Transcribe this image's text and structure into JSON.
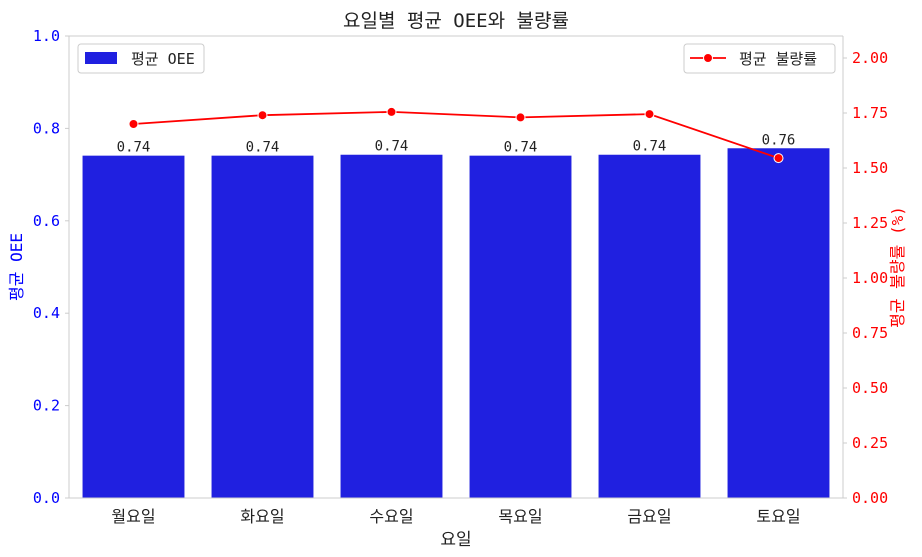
{
  "chart_data": {
    "type": "bar",
    "title": "요일별 평균 OEE와 불량률",
    "xlabel": "요일",
    "ylabel_left": "평균 OEE",
    "ylabel_right": "평균 불량률 (%)",
    "categories": [
      "월요일",
      "화요일",
      "수요일",
      "목요일",
      "금요일",
      "토요일"
    ],
    "series": [
      {
        "name": "평균 OEE",
        "type": "bar",
        "axis": "left",
        "color": "#2020e0",
        "values": [
          0.741,
          0.741,
          0.743,
          0.741,
          0.743,
          0.757
        ],
        "labels": [
          "0.74",
          "0.74",
          "0.74",
          "0.74",
          "0.74",
          "0.76"
        ]
      },
      {
        "name": "평균 불량률",
        "type": "line",
        "axis": "right",
        "color": "#ff0000",
        "values": [
          1.7,
          1.74,
          1.755,
          1.73,
          1.745,
          1.545
        ]
      }
    ],
    "ylim_left": [
      0,
      1.0
    ],
    "yticks_left": [
      "0.0",
      "0.2",
      "0.4",
      "0.6",
      "0.8",
      "1.0"
    ],
    "ylim_right": [
      0,
      2.1
    ],
    "yticks_right": [
      "0.00",
      "0.25",
      "0.50",
      "0.75",
      "1.00",
      "1.25",
      "1.50",
      "1.75",
      "2.00"
    ],
    "left_axis_color": "#0000ff",
    "right_axis_color": "#ff0000",
    "legend_left_position": "upper-left",
    "legend_right_position": "upper-right",
    "grid": false
  }
}
